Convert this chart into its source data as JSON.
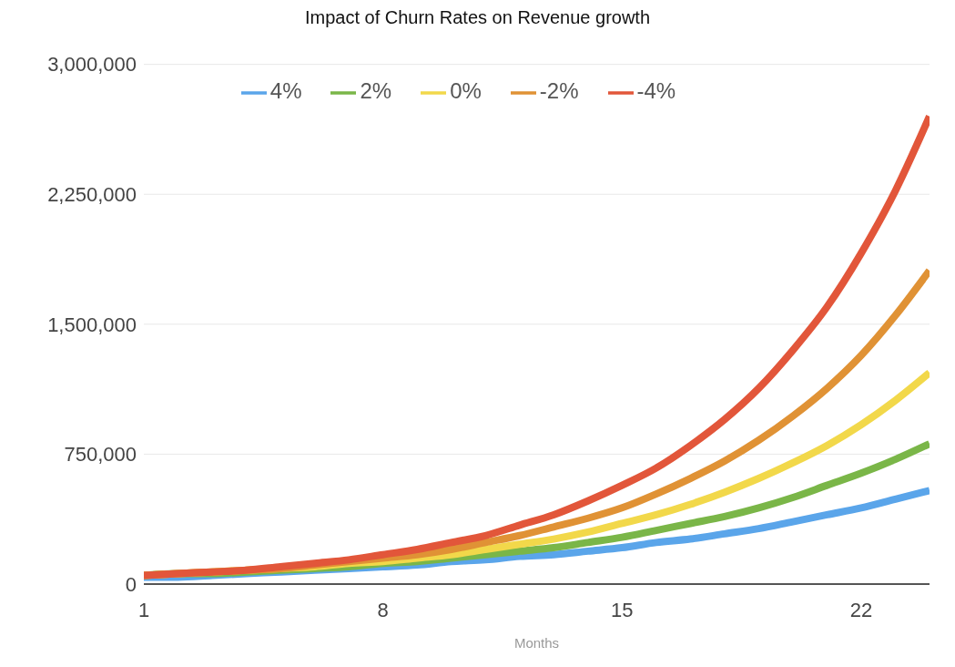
{
  "chart_data": {
    "type": "line",
    "title": "Impact of Churn Rates on Revenue growth",
    "xlabel": "Months",
    "x": [
      1,
      2,
      3,
      4,
      5,
      6,
      7,
      8,
      9,
      10,
      11,
      12,
      13,
      14,
      15,
      16,
      17,
      18,
      19,
      20,
      21,
      22,
      23,
      24
    ],
    "xlim": [
      1,
      24
    ],
    "xticks": [
      1,
      8,
      15,
      22
    ],
    "ylim": [
      0,
      3000000
    ],
    "yticks": [
      0,
      {
        "value": 750000,
        "label": "750,000"
      },
      {
        "value": 1500000,
        "label": "1,500,000"
      },
      {
        "value": 2250000,
        "label": "2,250,000"
      },
      {
        "value": 3000000,
        "label": "3,000,000"
      }
    ],
    "grid": "y",
    "legend": "top",
    "marker": "none",
    "line_style": "solid",
    "series": [
      {
        "name": "4%",
        "color": "#5aa5ea",
        "values": [
          40000,
          40000,
          50000,
          60000,
          70000,
          80000,
          90000,
          100000,
          110000,
          130000,
          140000,
          160000,
          170000,
          190000,
          210000,
          240000,
          260000,
          290000,
          320000,
          360000,
          400000,
          440000,
          490000,
          540000
        ]
      },
      {
        "name": "2%",
        "color": "#7ab648",
        "values": [
          50000,
          60000,
          60000,
          70000,
          80000,
          90000,
          100000,
          120000,
          130000,
          150000,
          170000,
          190000,
          210000,
          240000,
          270000,
          310000,
          350000,
          390000,
          440000,
          500000,
          570000,
          640000,
          720000,
          810000
        ]
      },
      {
        "name": "0%",
        "color": "#f2d84a",
        "values": [
          50000,
          60000,
          70000,
          80000,
          90000,
          100000,
          120000,
          130000,
          150000,
          170000,
          200000,
          230000,
          260000,
          300000,
          350000,
          400000,
          460000,
          530000,
          610000,
          700000,
          800000,
          920000,
          1060000,
          1220000
        ]
      },
      {
        "name": "-2%",
        "color": "#e09235",
        "values": [
          50000,
          60000,
          70000,
          80000,
          90000,
          110000,
          130000,
          150000,
          170000,
          200000,
          240000,
          280000,
          330000,
          380000,
          440000,
          520000,
          610000,
          710000,
          830000,
          970000,
          1130000,
          1320000,
          1550000,
          1810000
        ]
      },
      {
        "name": "-4%",
        "color": "#e2563a",
        "values": [
          50000,
          60000,
          70000,
          80000,
          100000,
          120000,
          140000,
          170000,
          200000,
          240000,
          280000,
          340000,
          400000,
          480000,
          570000,
          670000,
          800000,
          950000,
          1130000,
          1350000,
          1600000,
          1910000,
          2270000,
          2700000
        ]
      }
    ]
  }
}
